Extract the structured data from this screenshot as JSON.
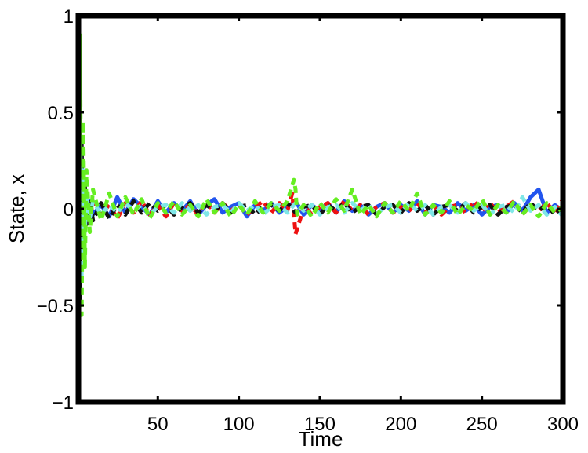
{
  "chart_data": {
    "type": "line",
    "title": "",
    "xlabel": "Time",
    "ylabel": "State, x",
    "xlim": [
      1,
      300
    ],
    "ylim": [
      -1,
      1
    ],
    "grid": false,
    "legend": "none",
    "x_ticks": [
      50,
      100,
      150,
      200,
      250,
      300
    ],
    "x_tick_labels": [
      "50",
      "100",
      "150",
      "200",
      "250",
      "300"
    ],
    "y_ticks": [
      1,
      0.5,
      0,
      -0.5,
      -1
    ],
    "y_tick_labels": [
      "1",
      "0.5",
      "0",
      "−0.5",
      "−1"
    ],
    "series": [
      {
        "color": "#2255ee",
        "style": "solid",
        "x": [
          1,
          2,
          3,
          4,
          5,
          6,
          8,
          10,
          15,
          20,
          25,
          30,
          35,
          40,
          45,
          50,
          55,
          60,
          65,
          70,
          75,
          80,
          85,
          90,
          95,
          100,
          105,
          110,
          115,
          120,
          125,
          130,
          135,
          140,
          145,
          150,
          155,
          160,
          165,
          170,
          175,
          180,
          185,
          190,
          195,
          200,
          205,
          210,
          215,
          220,
          225,
          230,
          235,
          240,
          245,
          250,
          255,
          260,
          265,
          270,
          275,
          280,
          285,
          290,
          295,
          300
        ],
        "y": [
          0.3,
          -0.25,
          0.15,
          -0.1,
          0.07,
          -0.05,
          0.04,
          -0.03,
          0.02,
          -0.04,
          0.06,
          -0.02,
          0.05,
          0.01,
          -0.03,
          0.04,
          -0.02,
          0.03,
          -0.01,
          0.04,
          -0.03,
          0.02,
          0.05,
          -0.02,
          0.01,
          0.03,
          -0.04,
          0.02,
          -0.01,
          0.03,
          -0.02,
          0.01,
          0.04,
          -0.03,
          0.02,
          -0.01,
          0.03,
          -0.02,
          0.04,
          -0.01,
          0.02,
          -0.03,
          0.01,
          0.03,
          -0.02,
          0.02,
          -0.01,
          0.04,
          -0.03,
          0.02,
          0.01,
          -0.02,
          0.03,
          -0.01,
          0.02,
          -0.03,
          0.01,
          0.02,
          -0.02,
          0.03,
          -0.01,
          0.06,
          0.1,
          -0.02,
          0.02,
          -0.01
        ]
      },
      {
        "color": "#ee1111",
        "style": "dashed",
        "x": [
          1,
          2,
          3,
          4,
          5,
          6,
          8,
          10,
          15,
          20,
          25,
          30,
          35,
          40,
          45,
          50,
          55,
          60,
          65,
          70,
          75,
          80,
          85,
          90,
          95,
          100,
          105,
          110,
          115,
          120,
          125,
          130,
          133,
          135,
          138,
          140,
          145,
          150,
          155,
          160,
          165,
          170,
          175,
          180,
          185,
          190,
          195,
          200,
          205,
          210,
          215,
          220,
          225,
          230,
          235,
          240,
          245,
          250,
          255,
          260,
          265,
          270,
          275,
          280,
          285,
          290,
          295,
          300
        ],
        "y": [
          -0.4,
          0.3,
          -0.18,
          0.12,
          -0.08,
          0.06,
          -0.05,
          0.04,
          -0.03,
          0.02,
          -0.05,
          0.03,
          -0.02,
          0.04,
          -0.03,
          0.02,
          -0.04,
          0.03,
          -0.01,
          0.02,
          -0.03,
          0.04,
          -0.02,
          0.03,
          -0.01,
          0.02,
          -0.03,
          0.01,
          0.04,
          -0.02,
          0.03,
          -0.01,
          0.08,
          -0.13,
          -0.05,
          0.02,
          -0.03,
          0.01,
          0.03,
          -0.02,
          0.04,
          -0.01,
          0.02,
          -0.03,
          0.01,
          0.03,
          -0.02,
          0.01,
          -0.01,
          0.03,
          -0.02,
          0.02,
          -0.03,
          0.01,
          0.02,
          -0.02,
          0.04,
          -0.01,
          0.03,
          -0.02,
          0.01,
          0.04,
          -0.03,
          0.02,
          -0.01,
          0.03,
          -0.02,
          0.05
        ]
      },
      {
        "color": "#111111",
        "style": "dashed",
        "x": [
          1,
          2,
          3,
          4,
          5,
          6,
          8,
          10,
          15,
          20,
          25,
          30,
          35,
          40,
          45,
          50,
          55,
          60,
          65,
          70,
          75,
          80,
          85,
          90,
          95,
          100,
          105,
          110,
          115,
          120,
          125,
          130,
          135,
          140,
          145,
          150,
          155,
          160,
          165,
          170,
          175,
          180,
          185,
          190,
          195,
          200,
          205,
          210,
          215,
          220,
          225,
          230,
          235,
          240,
          245,
          250,
          255,
          260,
          265,
          270,
          275,
          280,
          285,
          290,
          295,
          300
        ],
        "y": [
          0.6,
          -0.5,
          0.35,
          -0.2,
          0.12,
          -0.08,
          0.05,
          -0.06,
          0.03,
          -0.05,
          0.02,
          -0.03,
          0.04,
          -0.02,
          0.03,
          -0.01,
          0.02,
          -0.03,
          0.01,
          0.03,
          -0.02,
          0.02,
          -0.01,
          0.03,
          -0.02,
          0.01,
          0.02,
          -0.03,
          0.01,
          0.02,
          -0.01,
          0.03,
          -0.02,
          0.01,
          0.02,
          -0.03,
          0.02,
          -0.01,
          0.03,
          -0.02,
          0.01,
          0.02,
          -0.03,
          0.01,
          0.02,
          -0.02,
          0.03,
          -0.01,
          0.02,
          -0.03,
          0.01,
          0.02,
          -0.01,
          0.03,
          -0.02,
          0.01,
          0.02,
          -0.03,
          0.01,
          0.02,
          -0.02,
          0.03,
          -0.01,
          0.02,
          -0.03,
          0.01
        ]
      },
      {
        "color": "#7fe7e7",
        "style": "dashed",
        "x": [
          1,
          2,
          3,
          4,
          5,
          6,
          8,
          10,
          15,
          20,
          25,
          30,
          35,
          40,
          45,
          50,
          55,
          60,
          65,
          70,
          75,
          80,
          85,
          90,
          95,
          100,
          105,
          110,
          115,
          120,
          125,
          130,
          135,
          140,
          145,
          150,
          155,
          160,
          165,
          170,
          175,
          180,
          185,
          190,
          195,
          200,
          205,
          210,
          215,
          220,
          225,
          230,
          235,
          240,
          245,
          250,
          255,
          260,
          265,
          270,
          275,
          280,
          285,
          290,
          295,
          300
        ],
        "y": [
          -0.7,
          0.55,
          -0.35,
          0.2,
          -0.12,
          0.08,
          -0.05,
          0.04,
          -0.03,
          0.02,
          -0.02,
          0.03,
          -0.01,
          0.02,
          -0.03,
          0.01,
          0.02,
          -0.02,
          0.03,
          -0.01,
          0.02,
          -0.03,
          0.01,
          0.02,
          -0.02,
          0.03,
          -0.01,
          0.02,
          -0.03,
          0.01,
          0.02,
          -0.02,
          0.03,
          -0.01,
          0.02,
          -0.03,
          0.01,
          0.02,
          -0.02,
          0.03,
          -0.01,
          0.02,
          -0.03,
          0.01,
          0.02,
          -0.02,
          0.03,
          -0.01,
          0.02,
          -0.03,
          0.01,
          0.02,
          -0.02,
          0.03,
          -0.01,
          0.02,
          -0.03,
          0.01,
          0.02,
          -0.02,
          0.06,
          -0.01,
          0.02,
          -0.03,
          0.01,
          -0.04
        ]
      },
      {
        "color": "#66ee22",
        "style": "dashed",
        "x": [
          1,
          2,
          3,
          4,
          5,
          6,
          8,
          10,
          15,
          20,
          25,
          30,
          35,
          40,
          45,
          50,
          55,
          60,
          65,
          70,
          75,
          80,
          85,
          90,
          95,
          100,
          105,
          110,
          115,
          120,
          125,
          130,
          134,
          135,
          136,
          140,
          145,
          150,
          155,
          160,
          165,
          170,
          175,
          180,
          185,
          190,
          195,
          200,
          205,
          210,
          215,
          220,
          225,
          230,
          235,
          240,
          245,
          250,
          255,
          260,
          265,
          270,
          275,
          280,
          285,
          290,
          295,
          300
        ],
        "y": [
          -0.9,
          0.9,
          -0.55,
          0.45,
          -0.3,
          0.2,
          -0.12,
          0.1,
          -0.06,
          0.08,
          -0.04,
          0.06,
          -0.03,
          0.05,
          -0.05,
          0.03,
          -0.02,
          0.04,
          -0.03,
          0.02,
          -0.04,
          0.05,
          -0.02,
          0.03,
          -0.04,
          0.02,
          -0.03,
          0.04,
          -0.02,
          0.03,
          -0.01,
          0.04,
          0.15,
          0.1,
          -0.03,
          0.02,
          -0.04,
          0.03,
          -0.02,
          0.05,
          -0.01,
          0.1,
          -0.03,
          0.02,
          -0.04,
          0.03,
          -0.02,
          0.04,
          -0.01,
          0.08,
          -0.03,
          0.02,
          -0.02,
          0.04,
          -0.03,
          0.02,
          -0.01,
          0.05,
          -0.03,
          0.02,
          -0.02,
          0.04,
          -0.03,
          0.02,
          -0.04,
          0.03,
          -0.02,
          0.01
        ]
      }
    ]
  }
}
